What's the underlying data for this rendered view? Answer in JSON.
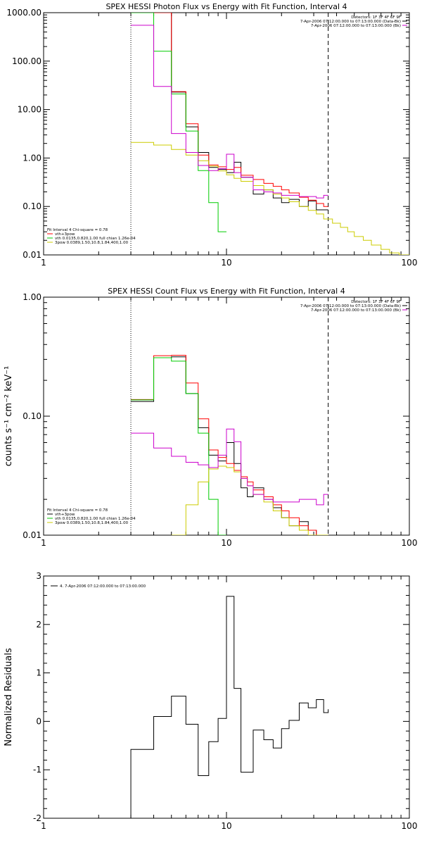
{
  "chart_data": [
    {
      "type": "line",
      "title": "SPEX HESSI Photon Flux vs Energy with Fit Function, Interval 4",
      "xscale": "log",
      "yscale": "log",
      "xlim": [
        1,
        100
      ],
      "ylim": [
        0.01,
        1000
      ],
      "xticks": [
        1,
        10,
        100
      ],
      "xtick_labels": [
        "1",
        "10",
        "100"
      ],
      "yticks": [
        0.01,
        0.1,
        1,
        10,
        100,
        1000
      ],
      "ytick_labels": [
        "0.01",
        "0.10",
        "1.00",
        "10.00",
        "100.00",
        "1000.00"
      ],
      "ylabel": "",
      "dotted_line_x": 3,
      "dashed_line_x": 36,
      "header_lines": [
        "Detectors: 1F 3F 4F 6F 9F",
        "7-Apr-2006 07:12:00.000 to 07:13:00.000 (Data-Bk)",
        "7-Apr-2006 07:12:00.000 to 07:13:00.000 (Bk)"
      ],
      "header_colors": [
        "#000000",
        "#000000",
        "#cc00cc"
      ],
      "legend_title": "Fit Interval 4   Chi-square = 0.78",
      "legend_entries": [
        {
          "label": "vth+3pow",
          "color": "#ff0000"
        },
        {
          "label": "vth 0.0135,0.820,1.00  full chian 1.26e-04",
          "color": "#00cc00"
        },
        {
          "label": "3pow 0.0389,1.50,10.8,1.84,400,1.00",
          "color": "#cccc00"
        }
      ],
      "series": [
        {
          "color": "#000000",
          "edges": [
            3,
            4,
            5,
            6,
            7,
            8,
            9,
            10,
            11,
            12,
            14,
            16,
            18,
            20,
            22,
            25,
            28,
            31,
            34,
            36
          ],
          "values": [
            1000,
            1000,
            23,
            4.4,
            1.3,
            0.64,
            0.58,
            0.5,
            0.82,
            0.4,
            0.18,
            0.22,
            0.15,
            0.12,
            0.14,
            0.1,
            0.13,
            0.085,
            0.085
          ]
        },
        {
          "color": "#ff0000",
          "edges": [
            3,
            4,
            5,
            6,
            7,
            8,
            9,
            10,
            11,
            12,
            14,
            16,
            18,
            20,
            22,
            25,
            28,
            31,
            34,
            36
          ],
          "values": [
            1000,
            1000,
            23.5,
            5.1,
            1.15,
            0.72,
            0.66,
            0.58,
            0.64,
            0.44,
            0.36,
            0.3,
            0.26,
            0.22,
            0.19,
            0.155,
            0.135,
            0.115,
            0.1
          ]
        },
        {
          "color": "#00cc00",
          "edges": [
            3,
            4,
            5,
            6,
            7,
            8,
            9,
            10
          ],
          "values": [
            1000,
            160,
            21,
            3.6,
            0.55,
            0.12,
            0.03
          ]
        },
        {
          "color": "#cccc00",
          "edges": [
            3,
            4,
            5,
            6,
            7,
            8,
            9,
            10,
            11,
            12,
            14,
            16,
            18,
            20,
            22,
            25,
            28,
            31,
            34,
            38,
            42,
            46,
            50,
            56,
            62,
            70,
            78,
            88,
            100
          ],
          "values": [
            2.1,
            1.85,
            1.5,
            1.15,
            0.88,
            0.68,
            0.54,
            0.45,
            0.38,
            0.33,
            0.27,
            0.22,
            0.18,
            0.15,
            0.125,
            0.1,
            0.083,
            0.07,
            0.055,
            0.045,
            0.037,
            0.03,
            0.024,
            0.02,
            0.016,
            0.013,
            0.011,
            0.0095
          ]
        },
        {
          "color": "#cc00cc",
          "edges": [
            3,
            4,
            5,
            6,
            7,
            8,
            9,
            10,
            11,
            12,
            14,
            16,
            18,
            20,
            22,
            25,
            28,
            31,
            34,
            36
          ],
          "values": [
            550,
            30,
            3.2,
            1.3,
            0.7,
            0.55,
            0.6,
            1.2,
            0.5,
            0.4,
            0.22,
            0.2,
            0.19,
            0.17,
            0.17,
            0.16,
            0.16,
            0.15,
            0.17
          ]
        }
      ]
    },
    {
      "type": "line",
      "title": "SPEX HESSI Count Flux vs Energy with Fit Function, Interval 4",
      "xscale": "log",
      "yscale": "log",
      "xlim": [
        1,
        100
      ],
      "ylim": [
        0.01,
        1
      ],
      "xticks": [
        1,
        10,
        100
      ],
      "xtick_labels": [
        "1",
        "10",
        "100"
      ],
      "yticks": [
        0.01,
        0.1,
        1
      ],
      "ytick_labels": [
        "0.01",
        "0.10",
        "1.00"
      ],
      "ylabel": "counts s⁻¹ cm⁻² keV⁻¹",
      "dotted_line_x": 3,
      "dashed_line_x": 36,
      "header_lines": [
        "Detectors: 1F 3F 4F 6F 9F",
        "7-Apr-2006 07:12:00.000 to 07:13:00.000 (Data-Bk)",
        "7-Apr-2006 07:12:00.000 to 07:13:00.000 (Bk)"
      ],
      "header_colors": [
        "#000000",
        "#000000",
        "#cc00cc"
      ],
      "legend_title": "Fit Interval 4   Chi-square = 0.78",
      "legend_entries": [
        {
          "label": "vth+3pow",
          "color": "#000000"
        },
        {
          "label": "vth 0.0135,0.820,1.00  full chian 1.26e-04",
          "color": "#00cc00"
        },
        {
          "label": "3pow 0.0389,1.50,10.8,1.84,400,1.00",
          "color": "#cccc00"
        }
      ],
      "series": [
        {
          "color": "#000000",
          "edges": [
            3,
            4,
            5,
            6,
            7,
            8,
            9,
            10,
            11,
            12,
            13,
            14,
            16,
            18,
            20,
            22,
            25,
            28,
            31,
            34,
            36
          ],
          "values": [
            0.133,
            0.31,
            0.315,
            0.155,
            0.08,
            0.047,
            0.042,
            0.06,
            0.04,
            0.025,
            0.021,
            0.025,
            0.02,
            0.017,
            0.014,
            0.012,
            0.013,
            0.011,
            0.01,
            0.01
          ]
        },
        {
          "color": "#ff0000",
          "edges": [
            3,
            4,
            5,
            6,
            7,
            8,
            9,
            10,
            11,
            12,
            13,
            14,
            16,
            18,
            20,
            22,
            25,
            28,
            31,
            34,
            36
          ],
          "values": [
            0.138,
            0.322,
            0.325,
            0.19,
            0.095,
            0.052,
            0.045,
            0.04,
            0.035,
            0.031,
            0.028,
            0.024,
            0.021,
            0.018,
            0.016,
            0.014,
            0.012,
            0.011,
            0.01,
            0.01
          ]
        },
        {
          "color": "#00cc00",
          "edges": [
            3,
            4,
            5,
            6,
            7,
            8,
            9,
            10
          ],
          "values": [
            0.137,
            0.31,
            0.29,
            0.155,
            0.072,
            0.02,
            0.01
          ]
        },
        {
          "color": "#cccc00",
          "edges": [
            5,
            6,
            7,
            8,
            9,
            10,
            11,
            12,
            13,
            14,
            16,
            18,
            20,
            22,
            25,
            28,
            31,
            34,
            36
          ],
          "values": [
            0.01,
            0.018,
            0.028,
            0.036,
            0.038,
            0.037,
            0.034,
            0.03,
            0.026,
            0.022,
            0.019,
            0.016,
            0.014,
            0.012,
            0.011,
            0.01,
            0.01,
            0.01
          ]
        },
        {
          "color": "#cc00cc",
          "edges": [
            3,
            4,
            5,
            6,
            7,
            8,
            9,
            10,
            11,
            12,
            13,
            14,
            16,
            18,
            20,
            22,
            25,
            28,
            31,
            34,
            36
          ],
          "values": [
            0.072,
            0.054,
            0.046,
            0.041,
            0.039,
            0.037,
            0.047,
            0.078,
            0.061,
            0.03,
            0.026,
            0.022,
            0.02,
            0.019,
            0.019,
            0.019,
            0.02,
            0.02,
            0.018,
            0.022
          ]
        }
      ]
    },
    {
      "type": "line",
      "title": "",
      "xscale": "log",
      "yscale": "linear",
      "xlim": [
        1,
        100
      ],
      "ylim": [
        -2,
        3
      ],
      "xticks": [
        1,
        10,
        100
      ],
      "xtick_labels": [
        "1",
        "10",
        "100"
      ],
      "yticks": [
        -2,
        -1,
        0,
        1,
        2,
        3
      ],
      "ytick_labels": [
        "-2",
        "-1",
        "0",
        "1",
        "2",
        "3"
      ],
      "ylabel": "Normalized Residuals",
      "legend_entries": [
        {
          "label": "4.  7-Apr-2006 07:12:00.000 to 07:13:00.000",
          "color": "#000000"
        }
      ],
      "series": [
        {
          "color": "#000000",
          "edges": [
            3,
            4,
            5,
            6,
            7,
            8,
            9,
            10,
            11,
            12,
            14,
            16,
            18,
            20,
            22,
            25,
            28,
            31,
            34,
            36
          ],
          "values": [
            -0.58,
            0.1,
            0.52,
            -0.06,
            -1.12,
            -0.42,
            0.06,
            2.58,
            0.68,
            -1.05,
            -0.18,
            -0.38,
            -0.55,
            -0.15,
            0.02,
            0.38,
            0.28,
            0.45,
            0.18,
            0.25
          ],
          "start_from_bottom": true,
          "end_to_bottom": true
        }
      ]
    }
  ]
}
